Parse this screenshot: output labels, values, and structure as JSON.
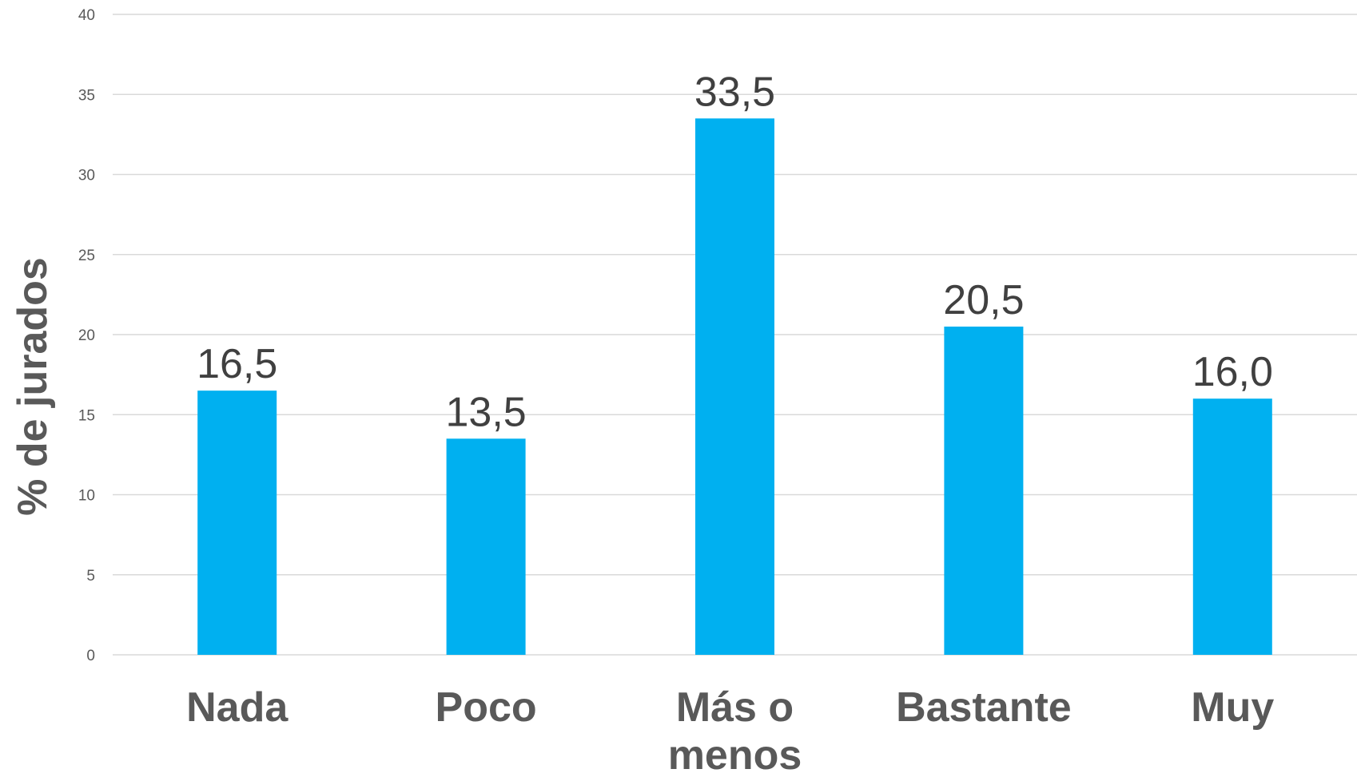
{
  "chart_data": {
    "type": "bar",
    "categories": [
      [
        "Nada"
      ],
      [
        "Poco"
      ],
      [
        "Más o",
        "menos"
      ],
      [
        "Bastante"
      ],
      [
        "Muy"
      ]
    ],
    "values": [
      16.5,
      13.5,
      33.5,
      20.5,
      16.0
    ],
    "value_labels": [
      "16,5",
      "13,5",
      "33,5",
      "20,5",
      "16,0"
    ],
    "title": "",
    "xlabel": "",
    "ylabel": "% de jurados",
    "ylim": [
      0,
      40
    ],
    "yticks": [
      0,
      5,
      10,
      15,
      20,
      25,
      30,
      35,
      40
    ],
    "grid": true,
    "bar_color": "#00b0f0",
    "legend": "none"
  }
}
